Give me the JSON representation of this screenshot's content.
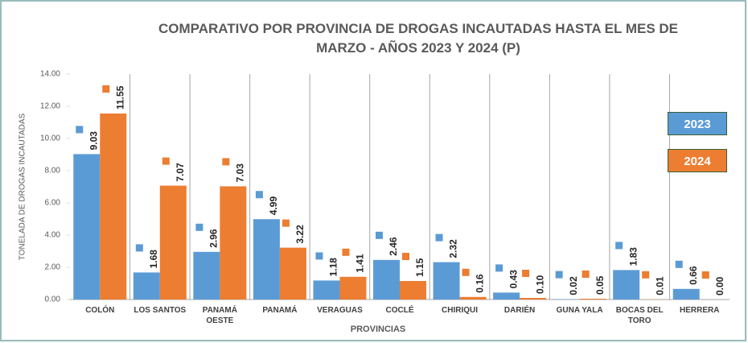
{
  "chart_data": {
    "type": "bar",
    "title": "COMPARATIVO POR PROVINCIA DE DROGAS INCAUTADAS HASTA EL MES DE MARZO -  AÑOS 2023 Y 2024 (P)",
    "x_label": "PROVINCIAS",
    "y_label": "TONELADA DE DROGAS INCAUTADAS",
    "categories": [
      "COLÓN",
      "LOS SANTOS",
      "PANAMÁ OESTE",
      "PANAMÁ",
      "VERAGUAS",
      "COCLÉ",
      "CHIRIQUI",
      "DARIÉN",
      "GUNA YALA",
      "BOCAS DEL TORO",
      "HERRERA"
    ],
    "series": [
      {
        "name": "2023",
        "color": "#5b9bd5",
        "values": [
          9.03,
          1.68,
          2.96,
          4.99,
          1.18,
          2.46,
          2.32,
          0.43,
          0.02,
          1.83,
          0.66
        ],
        "value_labels": [
          "9.03",
          "1.68",
          "2.96",
          "4.99",
          "1.18",
          "2.46",
          "2.32",
          "0.43",
          "0.02",
          "1.83",
          "0.66"
        ]
      },
      {
        "name": "2024",
        "color": "#ed7d31",
        "values": [
          11.55,
          7.07,
          7.03,
          3.22,
          1.41,
          1.15,
          0.16,
          0.1,
          0.05,
          0.01,
          0
        ],
        "value_labels": [
          "11.55",
          "7.07",
          "7.03",
          "3.22",
          "1.41",
          "1.15",
          "0.16",
          "0.10",
          "0.05",
          "0.01",
          "0.00"
        ]
      }
    ],
    "ylim": [
      0,
      14
    ],
    "yticks": [
      {
        "value": 0,
        "label": "0.00"
      },
      {
        "value": 2,
        "label": "2.00"
      },
      {
        "value": 4,
        "label": "4.00"
      },
      {
        "value": 6,
        "label": "6.00"
      },
      {
        "value": 8,
        "label": "8.00"
      },
      {
        "value": 10,
        "label": "10.00"
      },
      {
        "value": 12,
        "label": "12.00"
      },
      {
        "value": 14,
        "label": "14.00"
      }
    ],
    "grid": false,
    "legend": "right"
  }
}
